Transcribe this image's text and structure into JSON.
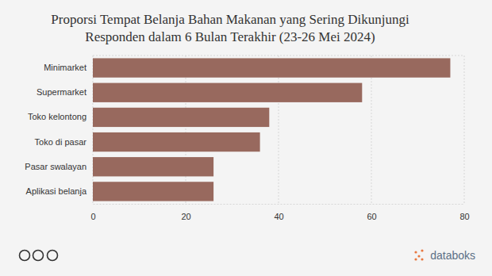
{
  "chart_data": {
    "type": "bar",
    "orientation": "horizontal",
    "title": "Proporsi Tempat Belanja Bahan Makanan yang Sering Dikunjungi Responden dalam 6 Bulan Terakhir (23-26 Mei 2024)",
    "categories": [
      "Minimarket",
      "Supermarket",
      "Toko kelontong",
      "Toko di pasar",
      "Pasar swalayan",
      "Aplikasi belanja"
    ],
    "values": [
      77,
      58,
      38,
      36,
      26,
      26
    ],
    "color": "#98695e",
    "xlim": [
      0,
      80
    ],
    "xticks": [
      0,
      20,
      40,
      60,
      80
    ],
    "grid": true,
    "annotations": [
      "databoks"
    ]
  }
}
